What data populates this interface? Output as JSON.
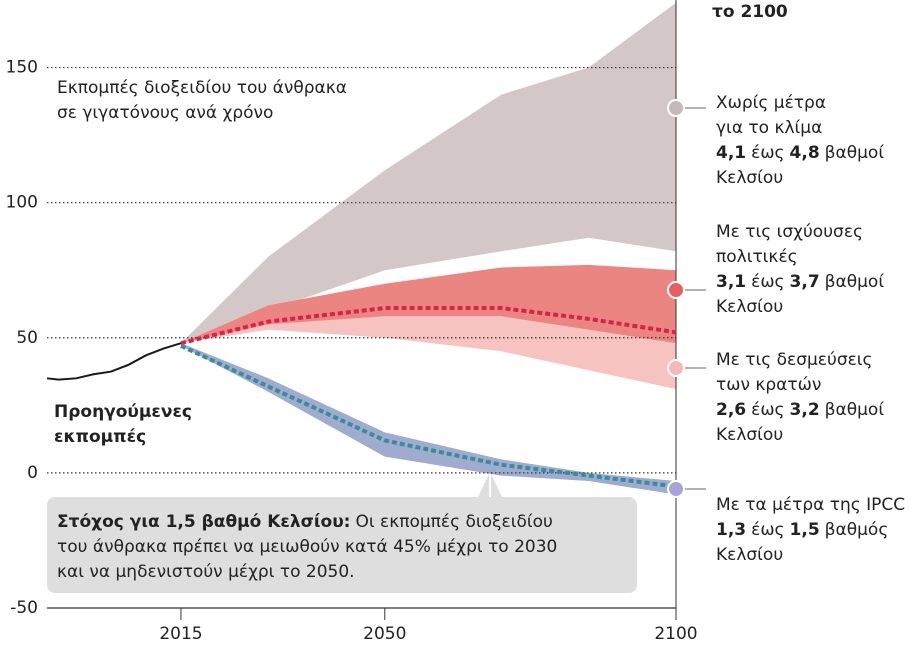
{
  "chart_data": {
    "type": "band",
    "title": "το 2100",
    "annotation_lines": [
      "Εκπομπές διοξειδίου του άνθρακα",
      "σε γιγατόνους ανά χρόνο"
    ],
    "history_label_lines": [
      "Προηγούμενες",
      "εκπομπές"
    ],
    "callout": {
      "bold": "Στόχος για 1,5 βαθμό Κελσίου:",
      "lines": [
        "Οι εκπομπές διοξειδίου",
        "του άνθρακα πρέπει να μειωθούν κατά 45% μέχρι το 2030",
        "και να μηδενιστούν μέχρι το 2050."
      ]
    },
    "xlim": [
      1992,
      2100
    ],
    "xticks": [
      2015,
      2050,
      2100
    ],
    "ylim": [
      -50,
      175
    ],
    "yticks": [
      -50,
      0,
      50,
      100,
      150
    ],
    "grid": true,
    "history": {
      "color": "#1a1a1a",
      "x": [
        1992,
        1994,
        1997,
        2000,
        2003,
        2006,
        2009,
        2012,
        2015
      ],
      "values": [
        35,
        34.5,
        35,
        36.5,
        37.5,
        40,
        43.5,
        46,
        48
      ]
    },
    "x": [
      2015,
      2030,
      2050,
      2070,
      2085,
      2100
    ],
    "series": [
      {
        "name_lines": [
          "Χωρίς μέτρα",
          "για το κλίμα"
        ],
        "range": [
          "4,1",
          "έως",
          "4,8",
          "βαθμοί"
        ],
        "unit": "Κελσίου",
        "color": "#d3c7c7",
        "marker_color": "#c7b9b9",
        "high": [
          48,
          80,
          112,
          140,
          150,
          174
        ],
        "low": [
          48,
          60,
          75,
          82,
          87,
          82
        ]
      },
      {
        "name_lines": [
          "Με τις δεσμεύσεις",
          "των κρατών"
        ],
        "range": [
          "2,6",
          "έως",
          "3,2",
          "βαθμοί"
        ],
        "unit": "Κελσίου",
        "color": "#f6c3c1",
        "marker_color": "#f4b9b7",
        "high": [
          48,
          57,
          60,
          62,
          58,
          54
        ],
        "low": [
          48,
          53,
          50,
          45,
          38,
          31
        ]
      },
      {
        "name_lines": [
          "Με τις ισχύουσες",
          "πολιτικές"
        ],
        "range": [
          "3,1",
          "έως",
          "3,7",
          "βαθμοί"
        ],
        "unit": "Κελσίου",
        "color": "#ea8581",
        "marker_color": "#e5605e",
        "high": [
          48,
          62,
          70,
          76,
          77,
          75
        ],
        "low": [
          48,
          55,
          58,
          58,
          53,
          48
        ],
        "line": [
          48,
          56,
          61,
          61,
          57,
          52
        ],
        "line_color": "#d8234a"
      },
      {
        "name_lines": [
          "Με τα μέτρα της IPCC"
        ],
        "range": [
          "1,3",
          "έως",
          "1,5",
          "βαθμός"
        ],
        "unit": "Κελσίου",
        "color": "#9fabcf",
        "marker_color": "#a9a3d8",
        "high": [
          48,
          35,
          15,
          5,
          0,
          -3
        ],
        "low": [
          47,
          30,
          6,
          -1,
          -3,
          -8
        ],
        "line": [
          47,
          32,
          12,
          3,
          -1,
          -5
        ],
        "line_color": "#3a8c9c"
      }
    ]
  }
}
